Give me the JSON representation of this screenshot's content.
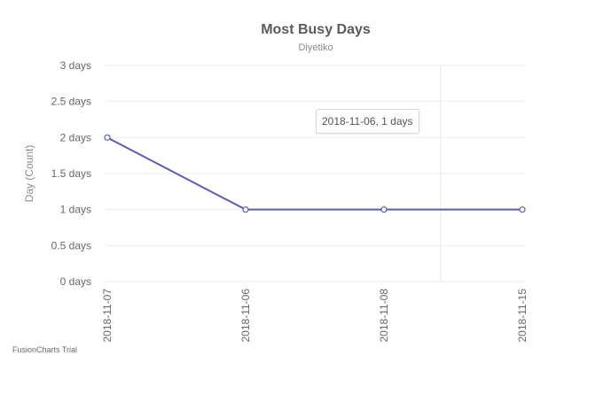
{
  "chart_data": {
    "type": "line",
    "title": "Most Busy Days",
    "subtitle": "Diyetiko",
    "ylabel": "Day (Count)",
    "xlabel": "",
    "categories": [
      "2018-11-07",
      "2018-11-06",
      "2018-11-08",
      "2018-11-15"
    ],
    "values": [
      2,
      1,
      1,
      1
    ],
    "ylim": [
      0,
      3
    ],
    "yticks": [
      0,
      0.5,
      1,
      1.5,
      2,
      2.5,
      3
    ],
    "ytick_labels": [
      "0 days",
      "0.5 days",
      "1 days",
      "1.5 days",
      "2 days",
      "2.5 days",
      "3 days"
    ],
    "grid": true,
    "legend": "none",
    "line_color": "#5b5da8",
    "tooltip": "2018-11-06, 1 days"
  },
  "watermark": "FusionCharts Trial"
}
